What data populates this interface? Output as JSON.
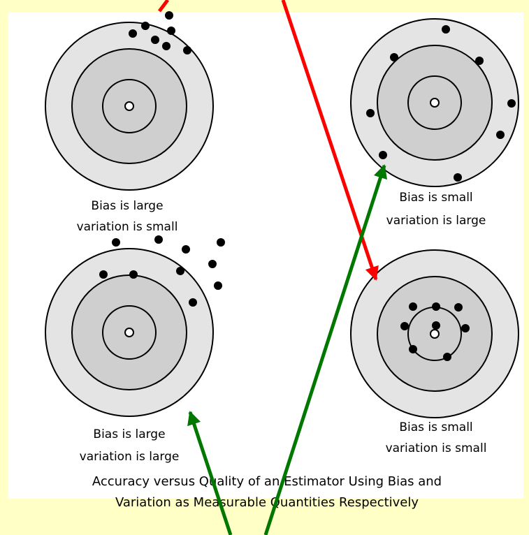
{
  "targets": [
    {
      "line1": "Bias is large",
      "line2": "variation is small"
    },
    {
      "line1": "Bias is small",
      "line2": "variation is large"
    },
    {
      "line1": "Bias is large",
      "line2": "variation is large"
    },
    {
      "line1": "Bias is small",
      "line2": "variation is small"
    }
  ],
  "caption": {
    "line1": "Accuracy versus Quality of an Estimator Using Bias and",
    "line2": "Variation as Measurable Quantities Respectively"
  }
}
